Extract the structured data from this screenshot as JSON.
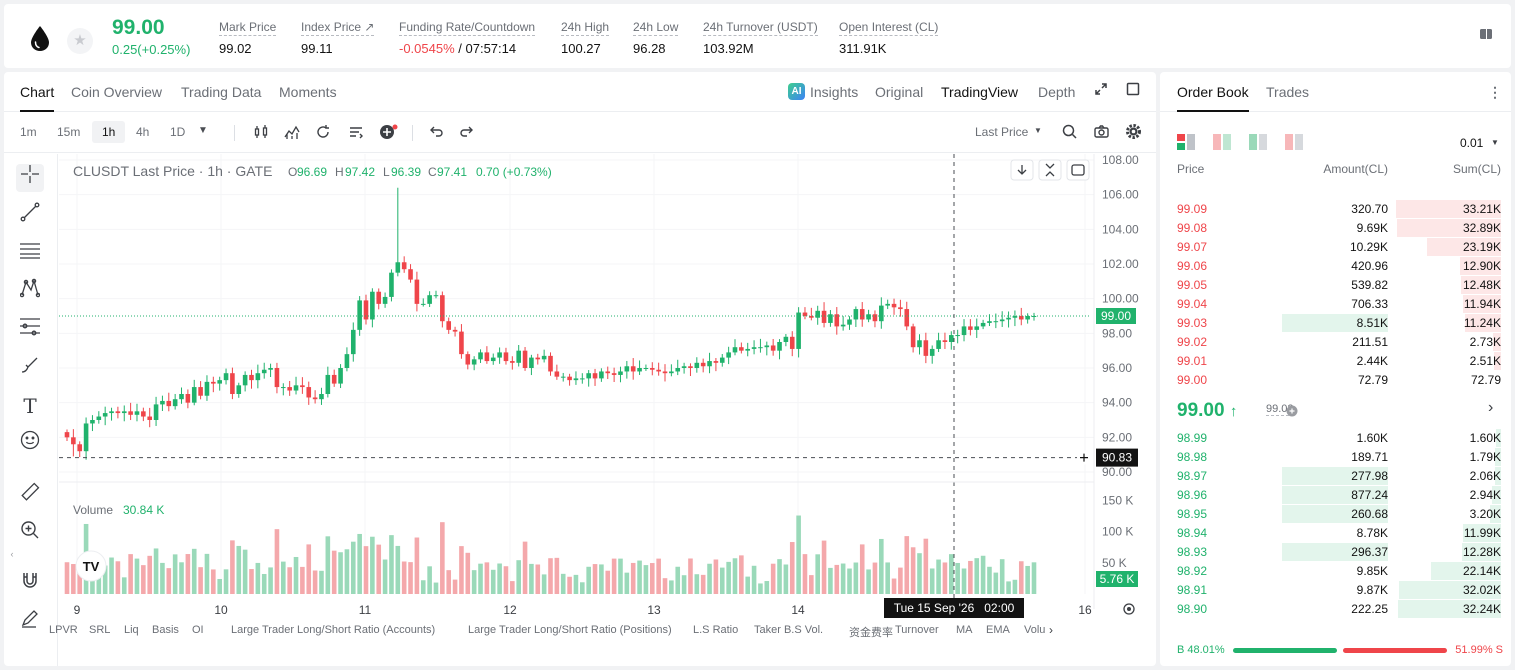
{
  "header": {
    "last_price": "99.00",
    "change": "0.25(+0.25%)",
    "stats": [
      {
        "label": "Mark Price",
        "value": "99.02"
      },
      {
        "label": "Index Price ↗",
        "value": "99.11"
      },
      {
        "label": "Funding Rate/Countdown",
        "value_neg": "-0.0545%",
        "value": " / 07:57:14"
      },
      {
        "label": "24h High",
        "value": "100.27"
      },
      {
        "label": "24h Low",
        "value": "96.28"
      },
      {
        "label": "24h Turnover (USDT)",
        "value": "103.92M"
      },
      {
        "label": "Open Interest (CL)",
        "value": "311.91K"
      }
    ]
  },
  "chart_tabs": [
    "Chart",
    "Coin Overview",
    "Trading Data",
    "Moments"
  ],
  "views": {
    "insights": "Insights",
    "original": "Original",
    "tradingview": "TradingView",
    "depth": "Depth"
  },
  "timeframes": [
    "1m",
    "15m",
    "1h",
    "4h",
    "1D"
  ],
  "price_type": "Last Price",
  "legend": {
    "symbol": "CLUSDT Last Price · 1h · GATE",
    "o_label": "O",
    "o": "96.69",
    "h_label": "H",
    "h": "97.42",
    "l_label": "L",
    "l": "96.39",
    "c_label": "C",
    "c": "97.41",
    "chg": "0.70 (+0.73%)"
  },
  "volume": {
    "label": "Volume",
    "value": "30.84 K",
    "tag": "5.76 K"
  },
  "price_tag": "99.00",
  "crosshair_tag": "90.83",
  "time_tag": "Tue 15 Sep '26   02:00",
  "bottom_indicators": [
    "LPVR",
    "SRL",
    "Liq",
    "Basis",
    "OI",
    "Large Trader Long/Short Ratio (Accounts)",
    "Large Trader Long/Short Ratio (Positions)",
    "L.S Ratio",
    "Taker B.S Vol.",
    "资金费率",
    "Turnover",
    "MA",
    "EMA",
    "Volu"
  ],
  "chart_data": {
    "type": "candlestick",
    "title": "CLUSDT Last Price · 1h · GATE",
    "y_ticks": [
      "108.00",
      "106.00",
      "104.00",
      "102.00",
      "100.00",
      "98.00",
      "96.00",
      "94.00",
      "92.00",
      "90.00"
    ],
    "ylim": [
      90,
      108
    ],
    "x_ticks": [
      "9",
      "10",
      "11",
      "12",
      "13",
      "14",
      "16"
    ],
    "volume_ticks": [
      "150 K",
      "100 K",
      "50 K"
    ],
    "volume_ylim": [
      0,
      160
    ],
    "closes": [
      92.0,
      91.6,
      91.2,
      92.8,
      93.0,
      93.2,
      93.4,
      93.5,
      93.4,
      93.5,
      93.3,
      93.5,
      93.2,
      93.0,
      93.9,
      94.1,
      93.8,
      94.2,
      94.5,
      94.0,
      94.9,
      94.4,
      95.2,
      95.1,
      95.3,
      95.7,
      94.5,
      95.0,
      95.6,
      95.3,
      95.7,
      95.9,
      96.0,
      94.9,
      94.9,
      94.7,
      95.0,
      94.9,
      94.3,
      94.2,
      94.5,
      95.6,
      95.1,
      96.0,
      96.8,
      98.2,
      99.9,
      98.8,
      100.4,
      99.7,
      100.1,
      101.5,
      102.1,
      101.7,
      101.1,
      99.7,
      99.7,
      100.2,
      100.2,
      98.7,
      98.2,
      98.1,
      96.8,
      96.2,
      96.5,
      96.9,
      96.4,
      96.6,
      96.9,
      96.4,
      96.3,
      97.0,
      96.0,
      96.6,
      96.5,
      96.7,
      95.8,
      95.5,
      95.5,
      95.3,
      95.4,
      95.4,
      95.7,
      95.4,
      95.8,
      95.7,
      95.6,
      95.8,
      96.1,
      95.8,
      96.0,
      96.0,
      95.9,
      95.8,
      95.7,
      95.8,
      96.0,
      96.1,
      96.0,
      96.3,
      96.1,
      96.4,
      96.3,
      96.6,
      96.9,
      97.2,
      97.0,
      97.1,
      97.2,
      97.2,
      97.3,
      97.0,
      97.5,
      97.8,
      97.1,
      99.2,
      99.0,
      98.9,
      99.3,
      98.6,
      99.1,
      98.4,
      98.5,
      98.8,
      99.4,
      98.8,
      99.1,
      98.7,
      99.6,
      99.7,
      99.5,
      99.4,
      98.4,
      97.2,
      97.6,
      96.7,
      97.1,
      97.6,
      97.5,
      97.9,
      97.9,
      98.4,
      98.2,
      98.4,
      98.6,
      98.7,
      98.7,
      98.8,
      98.9,
      99.0,
      98.8,
      99.0,
      99.0
    ]
  }
}
